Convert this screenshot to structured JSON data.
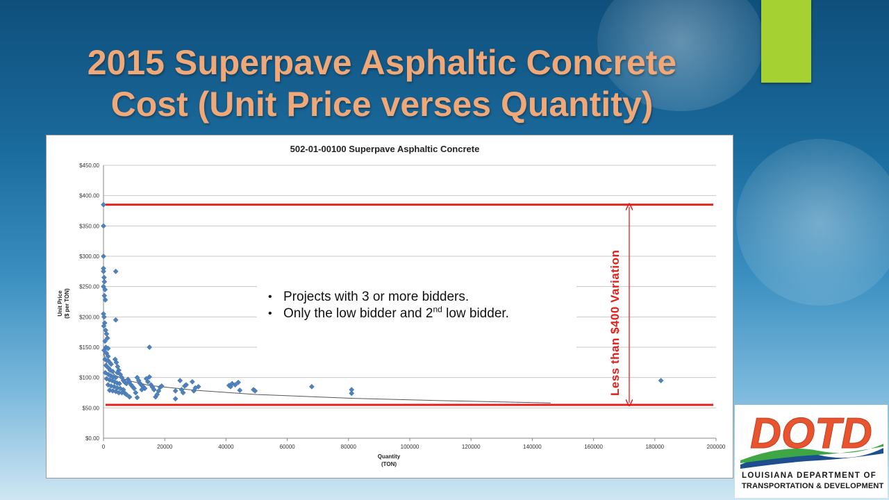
{
  "slide": {
    "title_line1": "2015 Superpave Asphaltic Concrete",
    "title_line2": "Cost (Unit Price verses Quantity)",
    "accent_color": "#a5d132",
    "title_color": "#f0a878"
  },
  "notes": {
    "bullet1": "Projects with 3 or more bidders.",
    "bullet2_main": "Only the low bidder and 2",
    "bullet2_sup": "nd",
    "bullet2_rest": " low bidder."
  },
  "annotation": {
    "variation_label": "Less than $400 Variation",
    "upper_line_value": 385,
    "lower_line_value": 55,
    "line_color": "#e0201c"
  },
  "logo": {
    "text": "DOTD",
    "line1": "LOUISIANA DEPARTMENT OF",
    "line2": "TRANSPORTATION & DEVELOPMENT",
    "brand_color": "#e8542f"
  },
  "chart_data": {
    "type": "scatter",
    "title": "502-01-00100 Superpave Asphaltic Concrete",
    "xlabel_line1": "Quantity",
    "xlabel_line2": "(TON)",
    "ylabel_line1": "Unit Price",
    "ylabel_line2": "($ per TON)",
    "xlim": [
      0,
      200000
    ],
    "ylim": [
      0,
      450
    ],
    "x_ticks": [
      0,
      20000,
      40000,
      60000,
      80000,
      100000,
      120000,
      140000,
      160000,
      180000,
      200000
    ],
    "y_ticks": [
      0,
      50,
      100,
      150,
      200,
      250,
      300,
      350,
      400,
      450
    ],
    "y_tick_labels": [
      "$0.00",
      "$50.00",
      "$100.00",
      "$150.00",
      "$200.00",
      "$250.00",
      "$300.00",
      "$350.00",
      "$400.00",
      "$450.00"
    ],
    "grid": "horizontal",
    "marker_color": "#4f81bd",
    "trendline": [
      [
        100,
        140
      ],
      [
        1500,
        115
      ],
      [
        4000,
        103
      ],
      [
        8000,
        95
      ],
      [
        15000,
        87
      ],
      [
        30000,
        79
      ],
      [
        50000,
        72
      ],
      [
        80000,
        66
      ],
      [
        110000,
        62
      ],
      [
        146000,
        58
      ]
    ],
    "points": [
      [
        0,
        385
      ],
      [
        0,
        350
      ],
      [
        0,
        300
      ],
      [
        0,
        280
      ],
      [
        0,
        275
      ],
      [
        200,
        265
      ],
      [
        300,
        258
      ],
      [
        0,
        250
      ],
      [
        500,
        245
      ],
      [
        300,
        235
      ],
      [
        600,
        228
      ],
      [
        0,
        205
      ],
      [
        200,
        200
      ],
      [
        400,
        190
      ],
      [
        100,
        185
      ],
      [
        700,
        178
      ],
      [
        1000,
        172
      ],
      [
        1300,
        165
      ],
      [
        500,
        160
      ],
      [
        800,
        150
      ],
      [
        1500,
        148
      ],
      [
        200,
        145
      ],
      [
        1000,
        140
      ],
      [
        1500,
        135
      ],
      [
        500,
        130
      ],
      [
        1500,
        128
      ],
      [
        2000,
        125
      ],
      [
        2500,
        122
      ],
      [
        800,
        120
      ],
      [
        1200,
        118
      ],
      [
        1800,
        115
      ],
      [
        2200,
        112
      ],
      [
        3000,
        110
      ],
      [
        600,
        108
      ],
      [
        1600,
        105
      ],
      [
        2400,
        103
      ],
      [
        3200,
        101
      ],
      [
        4000,
        100
      ],
      [
        1000,
        98
      ],
      [
        2000,
        96
      ],
      [
        2800,
        95
      ],
      [
        3600,
        93
      ],
      [
        4400,
        91
      ],
      [
        5200,
        90
      ],
      [
        1500,
        88
      ],
      [
        2500,
        86
      ],
      [
        3500,
        85
      ],
      [
        4500,
        83
      ],
      [
        5500,
        82
      ],
      [
        6500,
        80
      ],
      [
        2000,
        79
      ],
      [
        3000,
        78
      ],
      [
        4000,
        77
      ],
      [
        5000,
        75
      ],
      [
        6000,
        75
      ],
      [
        7000,
        74
      ],
      [
        3800,
        130
      ],
      [
        4200,
        125
      ],
      [
        4600,
        118
      ],
      [
        5000,
        112
      ],
      [
        4500,
        108
      ],
      [
        5500,
        105
      ],
      [
        6000,
        100
      ],
      [
        6500,
        95
      ],
      [
        7000,
        92
      ],
      [
        7500,
        90
      ],
      [
        8000,
        97
      ],
      [
        8500,
        93
      ],
      [
        9000,
        88
      ],
      [
        9500,
        85
      ],
      [
        10000,
        82
      ],
      [
        11000,
        100
      ],
      [
        11500,
        95
      ],
      [
        12000,
        90
      ],
      [
        12500,
        87
      ],
      [
        13000,
        85
      ],
      [
        13500,
        82
      ],
      [
        14000,
        98
      ],
      [
        14500,
        93
      ],
      [
        15000,
        101
      ],
      [
        15500,
        88
      ],
      [
        16000,
        84
      ],
      [
        16500,
        80
      ],
      [
        17000,
        68
      ],
      [
        17500,
        72
      ],
      [
        18000,
        78
      ],
      [
        18500,
        84
      ],
      [
        19000,
        86
      ],
      [
        7500,
        72
      ],
      [
        8500,
        68
      ],
      [
        10500,
        75
      ],
      [
        11000,
        67
      ],
      [
        12500,
        80
      ],
      [
        15000,
        150
      ],
      [
        4000,
        275
      ],
      [
        4000,
        195
      ],
      [
        23500,
        78
      ],
      [
        23500,
        65
      ],
      [
        25000,
        95
      ],
      [
        25500,
        80
      ],
      [
        26000,
        75
      ],
      [
        26500,
        86
      ],
      [
        27000,
        88
      ],
      [
        29000,
        93
      ],
      [
        29500,
        78
      ],
      [
        30000,
        83
      ],
      [
        31000,
        85
      ],
      [
        41000,
        87
      ],
      [
        41500,
        85
      ],
      [
        42000,
        90
      ],
      [
        43000,
        88
      ],
      [
        44000,
        92
      ],
      [
        44500,
        79
      ],
      [
        49000,
        80
      ],
      [
        49500,
        78
      ],
      [
        68000,
        85
      ],
      [
        81000,
        80
      ],
      [
        81000,
        74
      ],
      [
        182000,
        95
      ]
    ]
  }
}
